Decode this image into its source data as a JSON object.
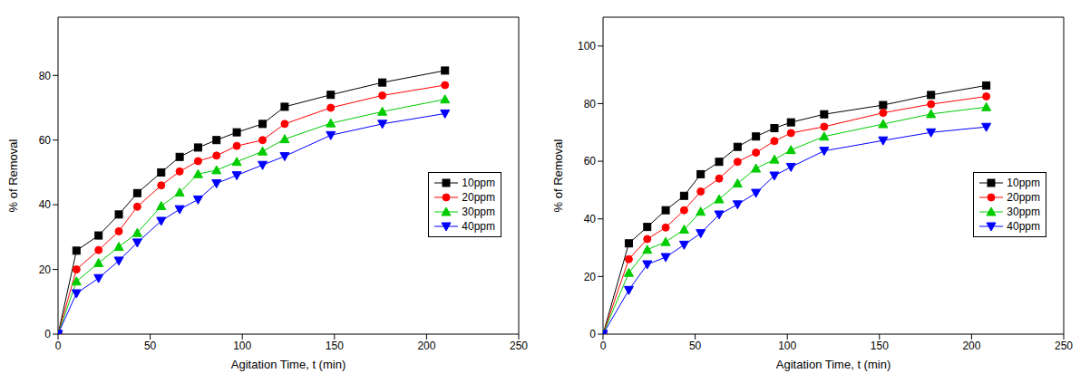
{
  "chart_data": [
    {
      "type": "line",
      "x_label": "Agitation Time, t (min)",
      "y_label": "% of Removal",
      "x": [
        0,
        10,
        22,
        33,
        43,
        56,
        66,
        76,
        86,
        97,
        111,
        123,
        148,
        176,
        210
      ],
      "xlim": [
        0,
        250
      ],
      "xticks": [
        0,
        50,
        100,
        150,
        200,
        250
      ],
      "ylim": [
        0,
        98
      ],
      "yticks": [
        0,
        20,
        40,
        60,
        80
      ],
      "legend": "right",
      "grid": false,
      "series": [
        {
          "name": "10ppm",
          "color": "#000000",
          "marker": "square",
          "values": [
            0,
            25.8,
            30.5,
            37,
            43.6,
            50,
            54.8,
            57.7,
            60,
            62.4,
            65,
            70.3,
            74,
            77.8,
            81.5
          ]
        },
        {
          "name": "20ppm",
          "color": "#ff0000",
          "marker": "circle",
          "values": [
            0,
            20,
            26,
            31.8,
            39.4,
            46,
            50.3,
            53.5,
            55.2,
            58.2,
            60,
            65,
            70,
            73.8,
            77
          ]
        },
        {
          "name": "30ppm",
          "color": "#00cc00",
          "marker": "triangle-up",
          "values": [
            0,
            16.3,
            22,
            27,
            31.3,
            39.6,
            43.8,
            49.5,
            50.7,
            53.3,
            56.5,
            60.3,
            65.2,
            68.8,
            72.6
          ]
        },
        {
          "name": "40ppm",
          "color": "#0000ff",
          "marker": "triangle-down",
          "values": [
            0,
            12.6,
            17.3,
            22.7,
            28.3,
            35,
            38.6,
            41.6,
            46.6,
            49.1,
            52.3,
            55,
            61.5,
            65,
            68.2
          ]
        }
      ]
    },
    {
      "type": "line",
      "x_label": "Agitation Time, t (min)",
      "y_label": "% of Removal",
      "x": [
        0,
        14,
        24,
        34,
        44,
        53,
        63,
        73,
        83,
        93,
        102,
        120,
        152,
        178,
        208
      ],
      "xlim": [
        0,
        250
      ],
      "xticks": [
        0,
        50,
        100,
        150,
        200,
        250
      ],
      "ylim": [
        0,
        110
      ],
      "yticks": [
        0,
        20,
        40,
        60,
        80,
        100
      ],
      "legend": "right",
      "grid": false,
      "series": [
        {
          "name": "10ppm",
          "color": "#000000",
          "marker": "square",
          "values": [
            0,
            31.5,
            37.2,
            43,
            48,
            55.5,
            59.8,
            65,
            68.6,
            71.5,
            73.5,
            76.3,
            79.5,
            83,
            86.3
          ]
        },
        {
          "name": "20ppm",
          "color": "#ff0000",
          "marker": "circle",
          "values": [
            0,
            26,
            33,
            37,
            43,
            49.5,
            54,
            59.8,
            63,
            67,
            69.8,
            72,
            76.8,
            79.8,
            82.5
          ]
        },
        {
          "name": "30ppm",
          "color": "#00cc00",
          "marker": "triangle-up",
          "values": [
            0,
            21.3,
            29.3,
            32,
            36.3,
            42.5,
            46.8,
            52.3,
            57.5,
            60.6,
            63.9,
            68.6,
            72.9,
            76.4,
            78.8
          ]
        },
        {
          "name": "40ppm",
          "color": "#0000ff",
          "marker": "triangle-down",
          "values": [
            0,
            15.3,
            24.2,
            26.7,
            31,
            35,
            41.5,
            45,
            49,
            55,
            58,
            63.6,
            67.2,
            70,
            71.9
          ]
        }
      ]
    }
  ]
}
